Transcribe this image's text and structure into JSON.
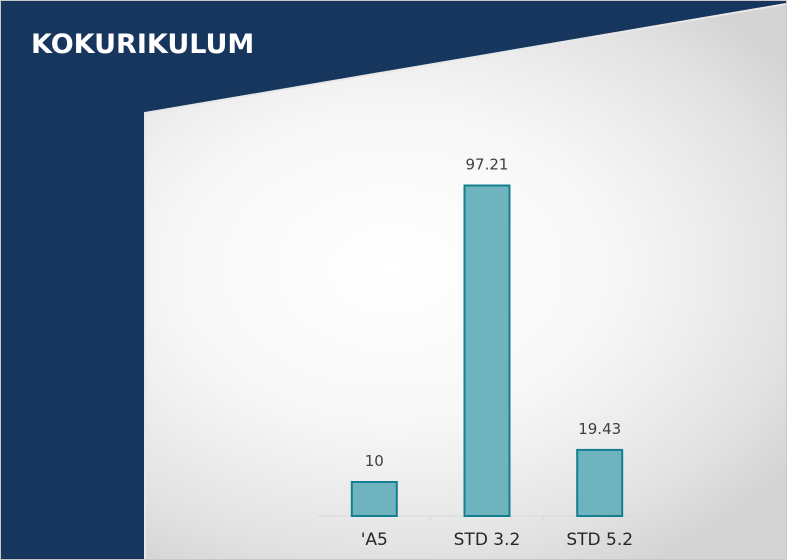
{
  "colors": {
    "banner": "#17365d",
    "bar_fill": "#6eb3bd",
    "bar_stroke": "#137f8f",
    "axis": "#d9d9d9"
  },
  "chart_data": {
    "type": "bar",
    "title": "KOKURIKULUM",
    "categories": [
      "'A5",
      "STD 3.2",
      "STD 5.2"
    ],
    "values": [
      10,
      97.21,
      19.43
    ],
    "data_labels": [
      "10",
      "97.21",
      "19.43"
    ],
    "ylim": [
      0,
      110
    ],
    "grid": false,
    "legend": "none"
  }
}
